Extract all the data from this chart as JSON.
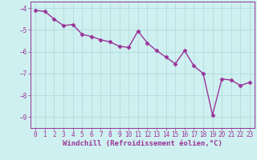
{
  "x": [
    0,
    1,
    2,
    3,
    4,
    5,
    6,
    7,
    8,
    9,
    10,
    11,
    12,
    13,
    14,
    15,
    16,
    17,
    18,
    19,
    20,
    21,
    22,
    23
  ],
  "y": [
    -4.1,
    -4.15,
    -4.5,
    -4.8,
    -4.75,
    -5.2,
    -5.3,
    -5.45,
    -5.55,
    -5.75,
    -5.8,
    -5.05,
    -5.6,
    -5.95,
    -6.25,
    -6.55,
    -5.95,
    -6.65,
    -7.0,
    -8.9,
    -7.25,
    -7.3,
    -7.55,
    -7.4
  ],
  "line_color": "#993399",
  "marker": "D",
  "markersize": 2.5,
  "linewidth": 1.0,
  "xlabel": "Windchill (Refroidissement éolien,°C)",
  "xlabel_fontsize": 6.5,
  "ylim": [
    -9.5,
    -3.7
  ],
  "xlim": [
    -0.5,
    23.5
  ],
  "yticks": [
    -9,
    -8,
    -7,
    -6,
    -5,
    -4
  ],
  "xticks": [
    0,
    1,
    2,
    3,
    4,
    5,
    6,
    7,
    8,
    9,
    10,
    11,
    12,
    13,
    14,
    15,
    16,
    17,
    18,
    19,
    20,
    21,
    22,
    23
  ],
  "background_color": "#cff0f0",
  "grid_color": "#aad8d8",
  "tick_fontsize": 5.5,
  "spine_color": "#993399"
}
